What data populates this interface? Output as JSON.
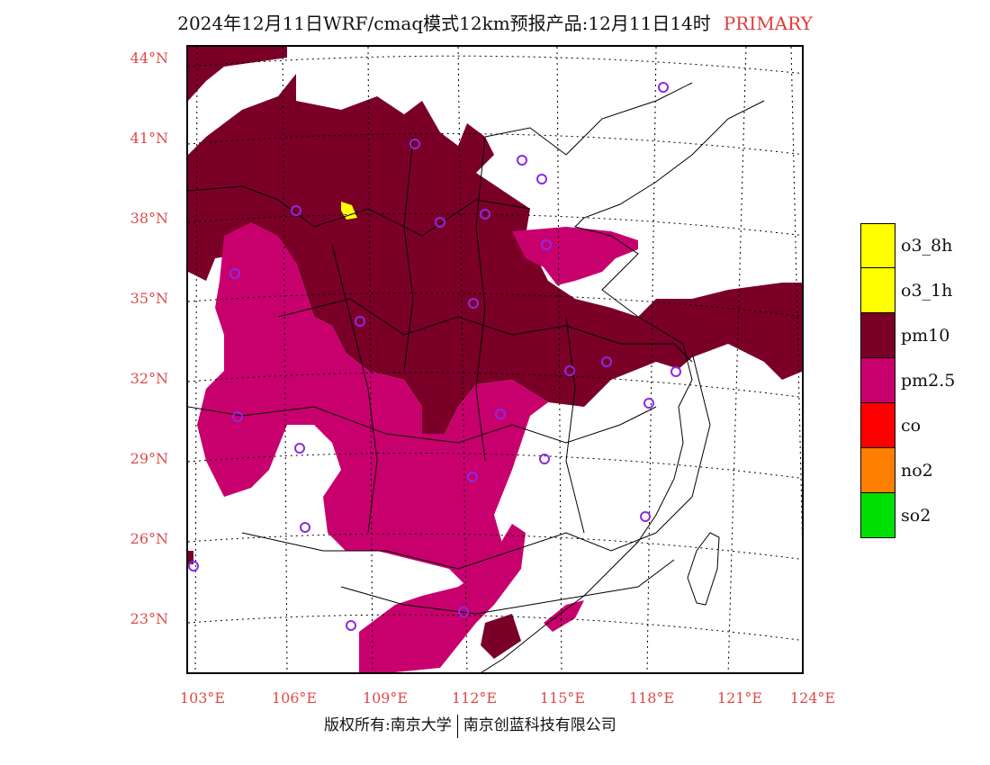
{
  "title": {
    "main": "2024年12月11日WRF/cmaq模式12km预报产品:12月11日14时",
    "tag": "PRIMARY"
  },
  "axes": {
    "latitudes": [
      "44°N",
      "41°N",
      "38°N",
      "35°N",
      "32°N",
      "29°N",
      "26°N",
      "23°N"
    ],
    "longitudes": [
      "103°E",
      "106°E",
      "109°E",
      "112°E",
      "115°E",
      "118°E",
      "121°E",
      "124°E"
    ]
  },
  "legend": [
    {
      "label": "o3_8h",
      "color": "#ffff00"
    },
    {
      "label": "o3_1h",
      "color": "#ffff00"
    },
    {
      "label": "pm10",
      "color": "#7a0028"
    },
    {
      "label": "pm2.5",
      "color": "#c8006e"
    },
    {
      "label": "co",
      "color": "#ff0000"
    },
    {
      "label": "no2",
      "color": "#ff7f00"
    },
    {
      "label": "so2",
      "color": "#00e000"
    }
  ],
  "copyright": {
    "left": "版权所有:南京大学",
    "right": "南京创蓝科技有限公司"
  },
  "colors": {
    "pm10": "#7a0028",
    "pm25": "#c8006e",
    "o3": "#ffff00",
    "station": "#8a2be2",
    "axis_label": "#e04848"
  }
}
